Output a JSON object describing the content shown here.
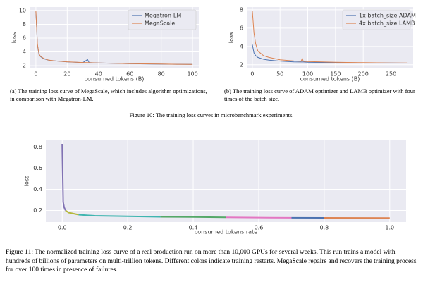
{
  "chart_data": [
    {
      "type": "line",
      "ylabel": "loss",
      "xlabel": "consumed tokens (B)",
      "x": [
        0,
        1,
        2,
        3,
        5,
        8,
        12,
        20,
        30,
        33,
        34,
        40,
        50,
        60,
        70,
        80,
        90,
        100
      ],
      "series": [
        {
          "name": "Megatron-LM",
          "color": "#4c72b0",
          "values": [
            9.8,
            5,
            3.6,
            3.3,
            3.0,
            2.8,
            2.7,
            2.55,
            2.45,
            2.9,
            2.45,
            2.4,
            2.35,
            2.3,
            2.25,
            2.22,
            2.2,
            2.18
          ]
        },
        {
          "name": "MegaScale",
          "color": "#dd8452",
          "values": [
            9.9,
            5.1,
            3.7,
            3.35,
            3.05,
            2.82,
            2.7,
            2.56,
            2.46,
            2.44,
            2.44,
            2.4,
            2.35,
            2.3,
            2.26,
            2.23,
            2.2,
            2.18
          ]
        }
      ],
      "xlim": [
        -4,
        104
      ],
      "xticks": [
        0,
        20,
        40,
        60,
        80,
        100
      ],
      "ylim": [
        1.6,
        10.5
      ],
      "yticks": [
        2,
        4,
        6,
        8,
        10
      ],
      "grid": true,
      "legend": "upper right"
    },
    {
      "type": "line",
      "ylabel": "loss",
      "xlabel": "consumed tokens (B)",
      "x": [
        0,
        3,
        6,
        10,
        20,
        30,
        50,
        75,
        88,
        90,
        92,
        100,
        150,
        200,
        250,
        280
      ],
      "series": [
        {
          "name": "1x batch_size ADAM",
          "color": "#4c72b0",
          "values": [
            4.2,
            3.3,
            3,
            2.8,
            2.6,
            2.5,
            2.4,
            2.32,
            2.3,
            2.3,
            2.3,
            2.28,
            2.24,
            2.21,
            2.19,
            2.18
          ]
        },
        {
          "name": "4x batch_size LAMB",
          "color": "#dd8452",
          "values": [
            7.9,
            5.5,
            4.3,
            3.5,
            3,
            2.8,
            2.55,
            2.42,
            2.38,
            2.7,
            2.38,
            2.35,
            2.28,
            2.23,
            2.2,
            2.19
          ]
        }
      ],
      "xlim": [
        -10,
        290
      ],
      "xticks": [
        0,
        50,
        100,
        150,
        200,
        250
      ],
      "ylim": [
        1.6,
        8.3
      ],
      "yticks": [
        2,
        4,
        6,
        8
      ],
      "grid": true,
      "legend": "upper right"
    },
    {
      "type": "line",
      "ylabel": "loss",
      "xlabel": "consumed tokens rate",
      "x": [
        0,
        0.003,
        0.006,
        0.01,
        0.02,
        0.05,
        0.1,
        0.2,
        0.3,
        0.4,
        0.5,
        0.6,
        0.7,
        0.8,
        0.9,
        1.0
      ],
      "series": [
        {
          "color": "#8172b3",
          "values": [
            0.83,
            0.28,
            0.23,
            0.2,
            null,
            null,
            null,
            null,
            null,
            null,
            null,
            null,
            null,
            null,
            null,
            null
          ]
        },
        {
          "color": "#b5b83a",
          "values": [
            null,
            null,
            null,
            0.2,
            0.18,
            0.16,
            null,
            null,
            null,
            null,
            null,
            null,
            null,
            null,
            null,
            null
          ]
        },
        {
          "color": "#3fb5b0",
          "values": [
            null,
            null,
            null,
            null,
            null,
            0.16,
            0.15,
            0.145,
            0.14,
            null,
            null,
            null,
            null,
            null,
            null,
            null
          ]
        },
        {
          "color": "#55a868",
          "values": [
            null,
            null,
            null,
            null,
            null,
            null,
            null,
            null,
            0.14,
            0.138,
            0.135,
            null,
            null,
            null,
            null,
            null
          ]
        },
        {
          "color": "#e377c2",
          "values": [
            null,
            null,
            null,
            null,
            null,
            null,
            null,
            null,
            null,
            null,
            0.135,
            0.133,
            0.131,
            null,
            null,
            null
          ]
        },
        {
          "color": "#4c72b0",
          "values": [
            null,
            null,
            null,
            null,
            null,
            null,
            null,
            null,
            null,
            null,
            null,
            null,
            0.131,
            0.13,
            null,
            null
          ]
        },
        {
          "color": "#dd8452",
          "values": [
            null,
            null,
            null,
            null,
            null,
            null,
            null,
            null,
            null,
            null,
            null,
            null,
            null,
            0.13,
            0.129,
            0.128
          ]
        }
      ],
      "xlim": [
        -0.05,
        1.05
      ],
      "xticks": [
        {
          "value": 0,
          "label": "0.0"
        },
        0.2,
        0.4,
        0.6,
        0.8,
        {
          "value": 1,
          "label": "1.0"
        }
      ],
      "ylim": [
        0.09,
        0.87
      ],
      "yticks": [
        0.2,
        0.4,
        0.6,
        0.8
      ],
      "grid": true
    }
  ],
  "figure10": {
    "subcaption_a": "(a) The training loss curve of MegaScale, which includes algorithm optimizations, in comparison with Megatron-LM.",
    "subcaption_b": "(b) The training loss curve of ADAM optimizer and LAMB optimizer with four times of the batch size.",
    "caption": "Figure 10: The training loss curves in microbenchmark experiments."
  },
  "figure11": {
    "caption": "Figure 11: The normalized training loss curve of a real production run on more than 10,000 GPUs for several weeks. This run trains a model with hundreds of billions of parameters on multi-trillion tokens. Different colors indicate training restarts. MegaScale repairs and recovers the training process for over 100 times in presence of failures."
  }
}
